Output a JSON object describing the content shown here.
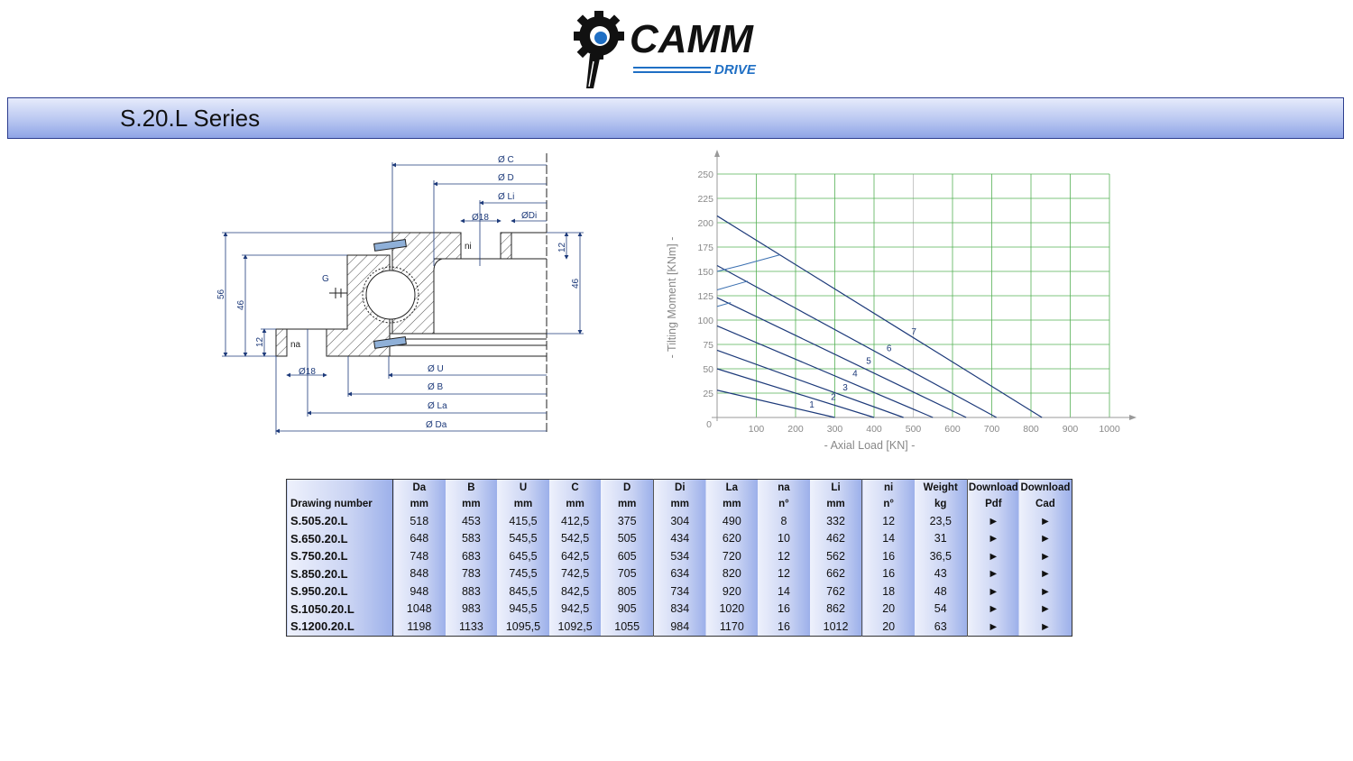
{
  "logo": {
    "text": "CAMM",
    "subtext": "DRIVE",
    "colors": {
      "gear": "#111111",
      "accent": "#1f6fc4"
    }
  },
  "series": {
    "title": "S.20.L Series"
  },
  "drawing": {
    "labels": {
      "c": "Ø C",
      "d": "Ø D",
      "li": "Ø Li",
      "hole_top": "Ø18",
      "di": "ØDi",
      "ni": "ni",
      "na": "na",
      "g": "G",
      "u": "Ø U",
      "b": "Ø B",
      "la": "Ø La",
      "da": "Ø Da",
      "hole_bottom": "Ø18",
      "h56": "56",
      "h46_left": "46",
      "h12_left": "12",
      "h12_right": "12",
      "h46_right": "46"
    }
  },
  "chart_data": {
    "type": "line",
    "xlabel": "-  Axial Load  [KN]  -",
    "ylabel": "-  Tilting Moment  [KNm]  -",
    "xlim": [
      0,
      1000
    ],
    "ylim": [
      0,
      250
    ],
    "xticks": [
      "0",
      "100",
      "200",
      "300",
      "400",
      "500",
      "600",
      "700",
      "800",
      "900",
      "1000"
    ],
    "yticks": [
      "25",
      "50",
      "75",
      "100",
      "125",
      "150",
      "175",
      "200",
      "225",
      "250"
    ],
    "grid": true,
    "grid_color": "#55b055",
    "line_color": "#1d3a7a",
    "series": [
      {
        "name": "1",
        "points": [
          [
            0,
            28
          ],
          [
            300,
            0
          ]
        ]
      },
      {
        "name": "2",
        "points": [
          [
            0,
            50
          ],
          [
            400,
            0
          ]
        ]
      },
      {
        "name": "3",
        "points": [
          [
            0,
            69
          ],
          [
            475,
            0
          ]
        ]
      },
      {
        "name": "4",
        "points": [
          [
            0,
            94
          ],
          [
            550,
            0
          ]
        ]
      },
      {
        "name": "5",
        "points": [
          [
            0,
            123
          ],
          [
            635,
            0
          ]
        ]
      },
      {
        "name": "6",
        "points": [
          [
            0,
            156
          ],
          [
            712,
            0
          ]
        ]
      },
      {
        "name": "7",
        "points": [
          [
            0,
            207
          ],
          [
            828,
            0
          ]
        ]
      }
    ],
    "limit_lines": [
      {
        "points": [
          [
            0,
            150
          ],
          [
            60,
            156
          ],
          [
            160,
            167
          ]
        ]
      },
      {
        "points": [
          [
            0,
            131
          ],
          [
            78,
            140
          ]
        ]
      },
      {
        "points": [
          [
            0,
            114
          ],
          [
            35,
            118
          ]
        ]
      }
    ]
  },
  "table": {
    "headers": [
      "",
      "Da",
      "B",
      "U",
      "C",
      "D",
      "Di",
      "La",
      "na",
      "Li",
      "ni",
      "Weight",
      "Download",
      "Download"
    ],
    "units": [
      "Drawing number",
      "mm",
      "mm",
      "mm",
      "mm",
      "mm",
      "mm",
      "mm",
      "n°",
      "mm",
      "n°",
      "kg",
      "Pdf",
      "Cad"
    ],
    "rows": [
      [
        "S.505.20.L",
        "518",
        "453",
        "415,5",
        "412,5",
        "375",
        "304",
        "490",
        "8",
        "332",
        "12",
        "23,5",
        "►",
        "►"
      ],
      [
        "S.650.20.L",
        "648",
        "583",
        "545,5",
        "542,5",
        "505",
        "434",
        "620",
        "10",
        "462",
        "14",
        "31",
        "►",
        "►"
      ],
      [
        "S.750.20.L",
        "748",
        "683",
        "645,5",
        "642,5",
        "605",
        "534",
        "720",
        "12",
        "562",
        "16",
        "36,5",
        "►",
        "►"
      ],
      [
        "S.850.20.L",
        "848",
        "783",
        "745,5",
        "742,5",
        "705",
        "634",
        "820",
        "12",
        "662",
        "16",
        "43",
        "►",
        "►"
      ],
      [
        "S.950.20.L",
        "948",
        "883",
        "845,5",
        "842,5",
        "805",
        "734",
        "920",
        "14",
        "762",
        "18",
        "48",
        "►",
        "►"
      ],
      [
        "S.1050.20.L",
        "1048",
        "983",
        "945,5",
        "942,5",
        "905",
        "834",
        "1020",
        "16",
        "862",
        "20",
        "54",
        "►",
        "►"
      ],
      [
        "S.1200.20.L",
        "1198",
        "1133",
        "1095,5",
        "1092,5",
        "1055",
        "984",
        "1170",
        "16",
        "1012",
        "20",
        "63",
        "►",
        "►"
      ]
    ]
  }
}
